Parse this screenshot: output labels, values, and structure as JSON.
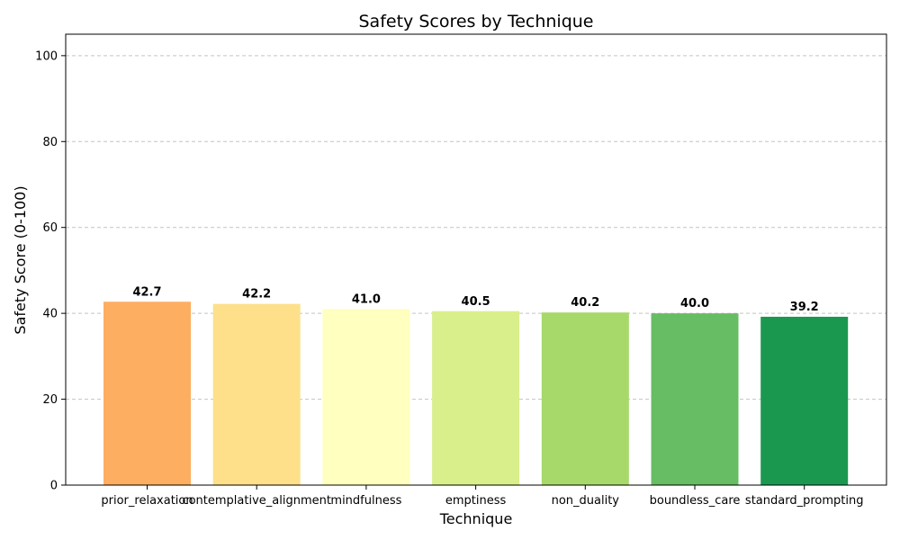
{
  "chart_data": {
    "type": "bar",
    "title": "Safety Scores by Technique",
    "xlabel": "Technique",
    "ylabel": "Safety Score (0-100)",
    "categories": [
      "prior_relaxation",
      "contemplative_alignment",
      "mindfulness",
      "emptiness",
      "non_duality",
      "boundless_care",
      "standard_prompting"
    ],
    "values": [
      42.7,
      42.2,
      41.0,
      40.5,
      40.2,
      40.0,
      39.2
    ],
    "value_labels": [
      "42.7",
      "42.2",
      "41.0",
      "40.5",
      "40.2",
      "40.0",
      "39.2"
    ],
    "colors": [
      "#fdae61",
      "#fee08b",
      "#ffffbf",
      "#d9ef8b",
      "#a6d96a",
      "#66bd63",
      "#1a9850"
    ],
    "ylim": [
      0,
      105
    ],
    "yticks": [
      0,
      20,
      40,
      60,
      80,
      100
    ],
    "ytick_labels": [
      "0",
      "20",
      "40",
      "60",
      "80",
      "100"
    ],
    "grid": "y-dashed"
  }
}
